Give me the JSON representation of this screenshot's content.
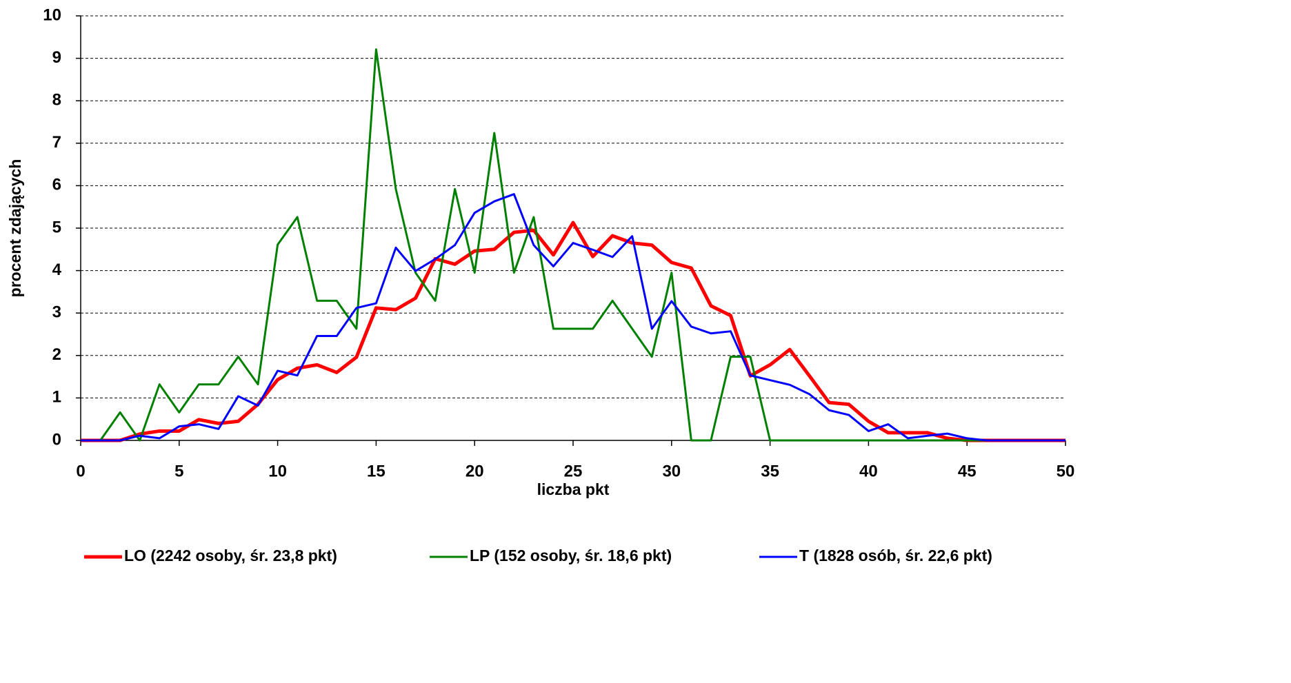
{
  "chart_data": {
    "type": "line",
    "xlabel": "liczba pkt",
    "ylabel": "procent zdających",
    "x": [
      0,
      1,
      2,
      3,
      4,
      5,
      6,
      7,
      8,
      9,
      10,
      11,
      12,
      13,
      14,
      15,
      16,
      17,
      18,
      19,
      20,
      21,
      22,
      23,
      24,
      25,
      26,
      27,
      28,
      29,
      30,
      31,
      32,
      33,
      34,
      35,
      36,
      37,
      38,
      39,
      40,
      41,
      42,
      43,
      44,
      45,
      46,
      47,
      48,
      49,
      50
    ],
    "series": [
      {
        "name": "LO (2242 osoby, śr. 23,8 pkt)",
        "color": "#ff0000",
        "width": 5,
        "values": [
          0,
          0,
          0,
          0.15,
          0.22,
          0.22,
          0.49,
          0.4,
          0.45,
          0.85,
          1.43,
          1.7,
          1.78,
          1.6,
          1.96,
          3.12,
          3.08,
          3.35,
          4.28,
          4.15,
          4.46,
          4.5,
          4.9,
          4.95,
          4.37,
          5.13,
          4.33,
          4.82,
          4.65,
          4.6,
          4.19,
          4.06,
          3.17,
          2.94,
          1.52,
          1.78,
          2.14,
          1.52,
          0.89,
          0.85,
          0.45,
          0.18,
          0.18,
          0.18,
          0.05,
          0,
          0,
          0,
          0,
          0,
          0
        ]
      },
      {
        "name": "LP (152 osoby, śr. 18,6 pkt)",
        "color": "#008000",
        "width": 3,
        "values": [
          0,
          0,
          0.66,
          0,
          1.32,
          0.66,
          1.32,
          1.32,
          1.97,
          1.32,
          4.61,
          5.26,
          3.29,
          3.29,
          2.63,
          9.21,
          5.92,
          3.95,
          3.29,
          5.92,
          3.95,
          7.24,
          3.95,
          5.26,
          2.63,
          2.63,
          2.63,
          3.29,
          2.63,
          1.97,
          3.95,
          0,
          0,
          1.97,
          1.97,
          0,
          0,
          0,
          0,
          0,
          0,
          0,
          0,
          0,
          0,
          0,
          0,
          0,
          0,
          0,
          0
        ]
      },
      {
        "name": "T (1828 osób, śr. 22,6 pkt)",
        "color": "#0000ff",
        "width": 3,
        "values": [
          0,
          0,
          0,
          0.11,
          0.05,
          0.33,
          0.38,
          0.27,
          1.04,
          0.82,
          1.64,
          1.53,
          2.46,
          2.46,
          3.12,
          3.23,
          4.54,
          3.99,
          4.27,
          4.6,
          5.36,
          5.63,
          5.8,
          4.6,
          4.1,
          4.65,
          4.49,
          4.32,
          4.81,
          2.63,
          3.28,
          2.68,
          2.52,
          2.57,
          1.53,
          1.42,
          1.31,
          1.09,
          0.71,
          0.6,
          0.22,
          0.38,
          0.05,
          0.11,
          0.16,
          0.05,
          0,
          0,
          0,
          0,
          0
        ]
      }
    ],
    "xlim": [
      0,
      50
    ],
    "xticks": [
      0,
      5,
      10,
      15,
      20,
      25,
      30,
      35,
      40,
      45,
      50
    ],
    "ylim": [
      0,
      10
    ],
    "yticks": [
      0,
      1,
      2,
      3,
      4,
      5,
      6,
      7,
      8,
      9,
      10
    ],
    "grid": true,
    "legend": "bottom"
  }
}
